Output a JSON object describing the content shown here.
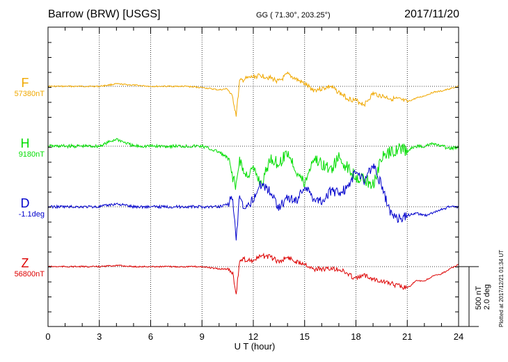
{
  "header": {
    "title": "Barrow (BRW)  [USGS]",
    "coords": "GG ( 71.30°, 203.25°)",
    "date": "2017/11/20"
  },
  "footer": {
    "plotted": "Plotted at 2017/12/21 01:34 UT"
  },
  "scale": {
    "nt_label": "500 nT",
    "deg_label": "2.0 deg"
  },
  "components": [
    {
      "name": "F",
      "baseline": "57380nT",
      "color": "#f0a800"
    },
    {
      "name": "H",
      "baseline": "9180nT",
      "color": "#00dd00"
    },
    {
      "name": "D",
      "baseline": "-1.1deg",
      "color": "#0000cc"
    },
    {
      "name": "Z",
      "baseline": "56800nT",
      "color": "#dd0000"
    }
  ],
  "chart_data": {
    "type": "line",
    "title": "",
    "xlabel": "U T (hour)",
    "ylabel": "",
    "xlim": [
      0,
      24
    ],
    "x_ticks": [
      "0",
      "3",
      "6",
      "9",
      "12",
      "15",
      "18",
      "21",
      "24"
    ],
    "grid": true,
    "x": [
      0,
      1,
      2,
      3,
      4,
      5,
      6,
      7,
      8,
      9,
      10,
      10.5,
      10.8,
      11,
      11.2,
      11.5,
      12,
      12.5,
      13,
      13.5,
      14,
      14.5,
      15,
      15.5,
      16,
      16.5,
      17,
      17.5,
      18,
      18.5,
      19,
      19.5,
      20,
      20.5,
      21,
      21.5,
      22,
      22.5,
      23,
      23.5,
      24
    ],
    "series": [
      {
        "name": "F",
        "unit": "nT",
        "values": [
          0,
          0,
          0,
          0,
          20,
          10,
          0,
          0,
          0,
          -10,
          -30,
          -20,
          -100,
          -240,
          40,
          60,
          80,
          90,
          70,
          40,
          100,
          60,
          20,
          -30,
          -20,
          0,
          -50,
          -100,
          -120,
          -150,
          -60,
          -80,
          -100,
          -110,
          -130,
          -100,
          -80,
          -50,
          -40,
          -20,
          0
        ]
      },
      {
        "name": "H",
        "unit": "nT",
        "values": [
          0,
          0,
          0,
          0,
          60,
          0,
          0,
          0,
          0,
          0,
          -50,
          -100,
          -250,
          -350,
          -100,
          -250,
          -200,
          -320,
          -100,
          -150,
          -50,
          -200,
          -320,
          -100,
          -150,
          -200,
          -100,
          -180,
          -250,
          -280,
          -320,
          -100,
          -50,
          -20,
          -40,
          0,
          0,
          20,
          0,
          -20,
          -10
        ]
      },
      {
        "name": "D",
        "unit": "deg",
        "values": [
          0,
          0,
          0,
          0,
          0.1,
          0,
          0,
          0,
          0,
          0,
          0,
          0.1,
          0.3,
          -1.2,
          0.4,
          -0.2,
          0.3,
          0.8,
          0.5,
          0,
          0.3,
          0.2,
          0.7,
          0.3,
          0.2,
          0.5,
          0.5,
          0.6,
          1.2,
          0.9,
          1.4,
          0.7,
          -0.2,
          -0.4,
          -0.3,
          -0.2,
          -0.3,
          -0.2,
          -0.1,
          0,
          0
        ]
      },
      {
        "name": "Z",
        "unit": "nT",
        "values": [
          0,
          0,
          0,
          0,
          10,
          0,
          0,
          0,
          0,
          0,
          -20,
          -20,
          -50,
          -230,
          50,
          60,
          50,
          90,
          80,
          40,
          80,
          40,
          30,
          -20,
          -20,
          -20,
          -20,
          -60,
          -100,
          -70,
          -100,
          -120,
          -140,
          -160,
          -180,
          -120,
          -120,
          -80,
          -60,
          -20,
          20
        ]
      }
    ]
  }
}
